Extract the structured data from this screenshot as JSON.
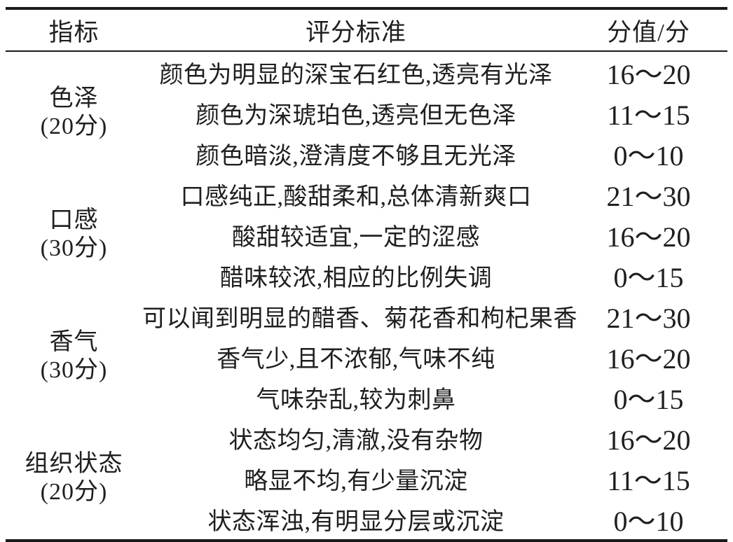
{
  "colors": {
    "background": "#ffffff",
    "text": "#1f1f1f",
    "rule": "#1a1a1a"
  },
  "columns": [
    "指标",
    "评分标准",
    "分值/分"
  ],
  "groups": [
    {
      "name": "色泽",
      "score_label": "(20分)",
      "rows": [
        {
          "criteria": "颜色为明显的深宝石红色,透亮有光泽",
          "score": "16～20"
        },
        {
          "criteria": "颜色为深琥珀色,透亮但无色泽",
          "score": "11～15"
        },
        {
          "criteria": "颜色暗淡,澄清度不够且无光泽",
          "score": "0～10"
        }
      ]
    },
    {
      "name": "口感",
      "score_label": "(30分)",
      "rows": [
        {
          "criteria": "口感纯正,酸甜柔和,总体清新爽口",
          "score": "21～30"
        },
        {
          "criteria": "酸甜较适宜,一定的涩感",
          "score": "16～20"
        },
        {
          "criteria": "醋味较浓,相应的比例失调",
          "score": "0～15"
        }
      ]
    },
    {
      "name": "香气",
      "score_label": "(30分)",
      "rows": [
        {
          "criteria": "可以闻到明显的醋香、菊花香和枸杞果香",
          "score": "21～30"
        },
        {
          "criteria": "香气少,且不浓郁,气味不纯",
          "score": "16～20"
        },
        {
          "criteria": "气味杂乱,较为刺鼻",
          "score": "0～15"
        }
      ]
    },
    {
      "name": "组织状态",
      "score_label": "(20分)",
      "rows": [
        {
          "criteria": "状态均匀,清澈,没有杂物",
          "score": "16～20"
        },
        {
          "criteria": "略显不均,有少量沉淀",
          "score": "11～15"
        },
        {
          "criteria": "状态浑浊,有明显分层或沉淀",
          "score": "0～10"
        }
      ]
    }
  ]
}
